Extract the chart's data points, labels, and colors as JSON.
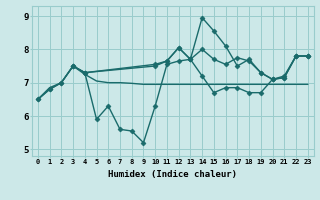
{
  "xlabel": "Humidex (Indice chaleur)",
  "xlim": [
    -0.5,
    23.5
  ],
  "ylim": [
    4.8,
    9.3
  ],
  "yticks": [
    5,
    6,
    7,
    8,
    9
  ],
  "xticks": [
    0,
    1,
    2,
    3,
    4,
    5,
    6,
    7,
    8,
    9,
    10,
    11,
    12,
    13,
    14,
    15,
    16,
    17,
    18,
    19,
    20,
    21,
    22,
    23
  ],
  "bg_color": "#cce8e8",
  "grid_color": "#99cccc",
  "line_color": "#1a6b6b",
  "line_width": 1.0,
  "marker": "D",
  "marker_size": 2.5,
  "series1_x": [
    0,
    1,
    2,
    3,
    4,
    5,
    6,
    7,
    8,
    9,
    10,
    11,
    12,
    13,
    14,
    15,
    16,
    17,
    18,
    19,
    20,
    21,
    22,
    23
  ],
  "series1_y": [
    6.5,
    6.8,
    7.0,
    7.5,
    7.3,
    5.9,
    6.3,
    5.6,
    5.55,
    5.2,
    6.3,
    7.55,
    7.65,
    7.7,
    7.2,
    6.7,
    6.85,
    6.85,
    6.7,
    6.7,
    7.1,
    7.15,
    7.8,
    7.8
  ],
  "series2_x": [
    0,
    1,
    2,
    3,
    4,
    5,
    6,
    7,
    8,
    9,
    10,
    11,
    12,
    13,
    14,
    15,
    16,
    17,
    18,
    19,
    20,
    21,
    22,
    23
  ],
  "series2_y": [
    6.5,
    6.85,
    7.0,
    7.5,
    7.25,
    7.05,
    7.0,
    7.0,
    6.98,
    6.95,
    6.95,
    6.95,
    6.95,
    6.95,
    6.95,
    6.95,
    6.95,
    6.95,
    6.95,
    6.95,
    6.95,
    6.95,
    6.95,
    6.95
  ],
  "series3_x": [
    3,
    4,
    10,
    11,
    12,
    13,
    14,
    15,
    16,
    17,
    18,
    19,
    20,
    21,
    22,
    23
  ],
  "series3_y": [
    7.5,
    7.3,
    7.5,
    7.65,
    8.05,
    7.7,
    8.95,
    8.55,
    8.1,
    7.5,
    7.7,
    7.3,
    7.1,
    7.2,
    7.8,
    7.8
  ],
  "series4_x": [
    0,
    1,
    2,
    3,
    4,
    10,
    11,
    12,
    13,
    14,
    15,
    16,
    17,
    18,
    19,
    20,
    21,
    22,
    23
  ],
  "series4_y": [
    6.5,
    6.8,
    7.0,
    7.5,
    7.3,
    7.55,
    7.65,
    8.05,
    7.7,
    8.0,
    7.7,
    7.55,
    7.75,
    7.65,
    7.3,
    7.1,
    7.15,
    7.8,
    7.8
  ]
}
